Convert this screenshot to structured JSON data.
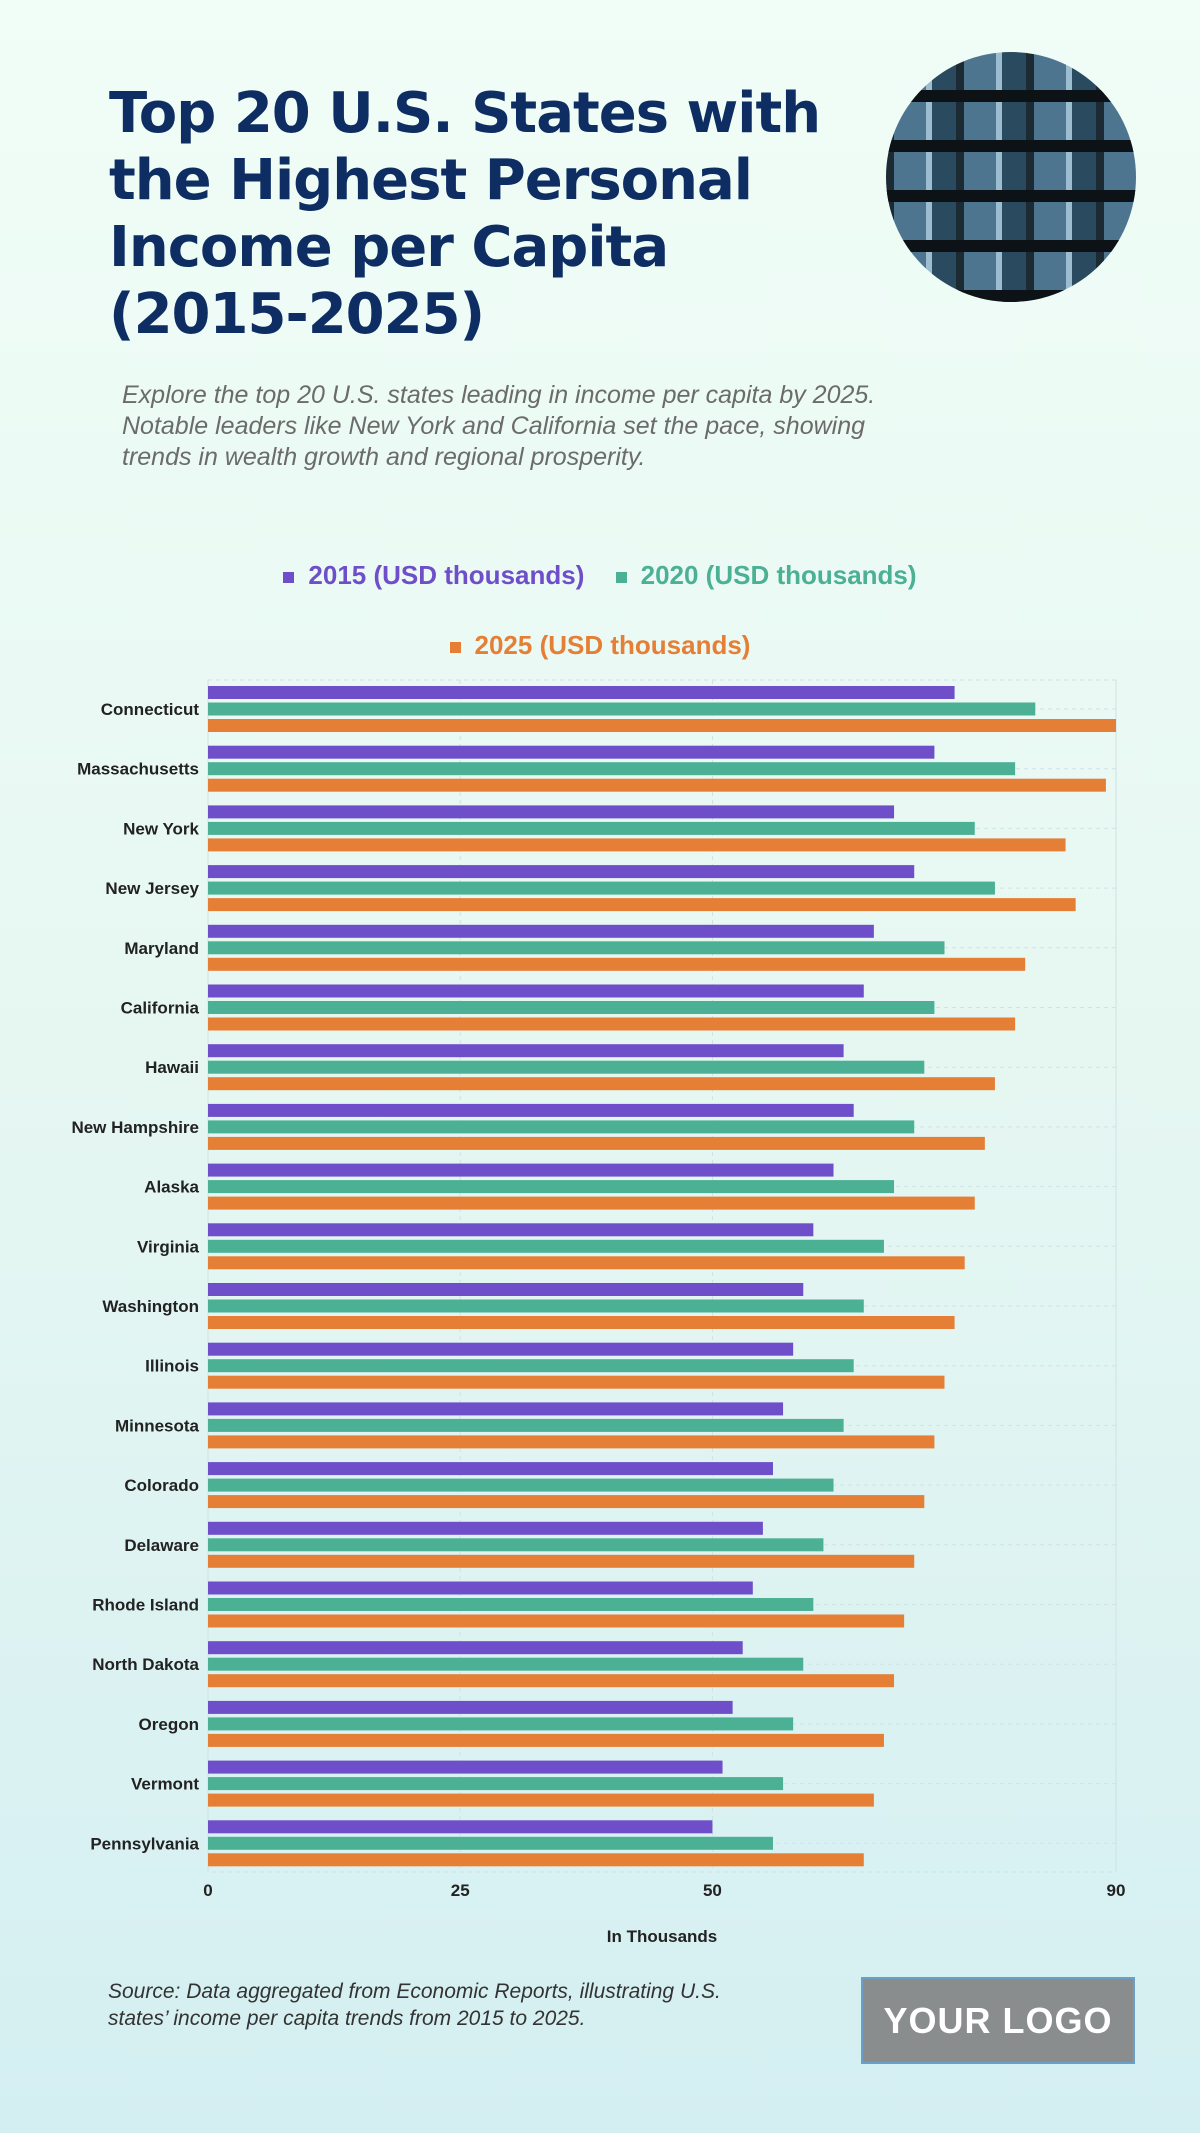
{
  "title": "Top 20 U.S. States with the Highest Personal Income per Capita (2015-2025)",
  "subtitle": "Explore the top 20 U.S. states leading in income per capita by 2025. Notable leaders like New York and California set the pace, showing trends in wealth growth and regional prosperity.",
  "source": "Source: Data aggregated from Economic Reports, illustrating U.S. states’ income per capita trends from 2015 to 2025.",
  "logo": "YOUR LOGO",
  "colors": {
    "2015": "#6e4fc9",
    "2020": "#4bb094",
    "2025": "#e57f36",
    "title": "#0d2d63"
  },
  "chart_data": {
    "type": "bar",
    "orientation": "horizontal",
    "categories": [
      "Connecticut",
      "Massachusetts",
      "New York",
      "New Jersey",
      "Maryland",
      "California",
      "Hawaii",
      "New Hampshire",
      "Alaska",
      "Virginia",
      "Washington",
      "Illinois",
      "Minnesota",
      "Colorado",
      "Delaware",
      "Rhode Island",
      "North Dakota",
      "Oregon",
      "Vermont",
      "Pennsylvania"
    ],
    "series": [
      {
        "name": "2015 (USD thousands)",
        "values": [
          74,
          72,
          68,
          70,
          66,
          65,
          63,
          64,
          62,
          60,
          59,
          58,
          57,
          56,
          55,
          54,
          53,
          52,
          51,
          50
        ]
      },
      {
        "name": "2020 (USD thousands)",
        "values": [
          82,
          80,
          76,
          78,
          73,
          72,
          71,
          70,
          68,
          67,
          65,
          64,
          63,
          62,
          61,
          60,
          59,
          58,
          57,
          56
        ]
      },
      {
        "name": "2025 (USD thousands)",
        "values": [
          90,
          89,
          85,
          86,
          81,
          80,
          78,
          77,
          76,
          75,
          74,
          73,
          72,
          71,
          70,
          69,
          68,
          67,
          66,
          65
        ]
      }
    ],
    "xlabel": "In Thousands",
    "xlim": [
      0,
      90
    ],
    "xticks": [
      "0",
      "25",
      "50",
      "90"
    ],
    "xtick_values": [
      0,
      25,
      50,
      90
    ],
    "grid": true,
    "legend_position": "top"
  }
}
